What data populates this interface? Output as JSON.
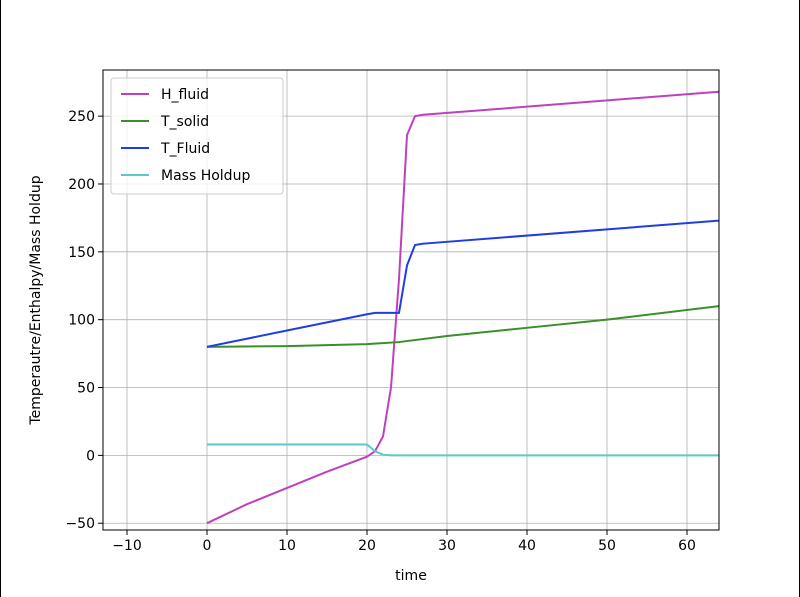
{
  "chart_data": {
    "type": "line",
    "xlabel": "time",
    "ylabel": "Temperautre/Enthalpy/Mass Holdup",
    "xlim": [
      -13,
      64
    ],
    "ylim": [
      -55,
      284
    ],
    "xticks": [
      {
        "value": -10,
        "label": "−10"
      },
      0,
      10,
      20,
      30,
      40,
      50,
      60
    ],
    "yticks": [
      {
        "value": -50,
        "label": "−50"
      },
      0,
      50,
      100,
      150,
      200,
      250
    ],
    "grid": true,
    "legend": "upper-left",
    "series": [
      {
        "name": "H_fluid",
        "color": "#bf40bf",
        "x": [
          0,
          5,
          10,
          15,
          20,
          21,
          22,
          23,
          24,
          25,
          26,
          27,
          64
        ],
        "values": [
          -50,
          -36,
          -24,
          -12,
          -1,
          3,
          14,
          50,
          130,
          236,
          250,
          251,
          268
        ]
      },
      {
        "name": "T_solid",
        "color": "#3a8f2a",
        "x": [
          0,
          10,
          20,
          24,
          30,
          40,
          50,
          64
        ],
        "values": [
          80,
          80.5,
          82,
          83.5,
          88,
          94,
          100,
          110
        ]
      },
      {
        "name": "T_Fluid",
        "color": "#1f3ee0",
        "x": [
          0,
          10,
          20,
          21,
          24,
          25,
          26,
          27,
          64
        ],
        "values": [
          80,
          92,
          104,
          105,
          105,
          140,
          155,
          156,
          173
        ]
      },
      {
        "name": "Mass Holdup",
        "color": "#5bc8cf",
        "x": [
          0,
          20,
          21,
          22,
          23,
          64
        ],
        "values": [
          8,
          8,
          3,
          0.5,
          0,
          0
        ]
      }
    ]
  }
}
